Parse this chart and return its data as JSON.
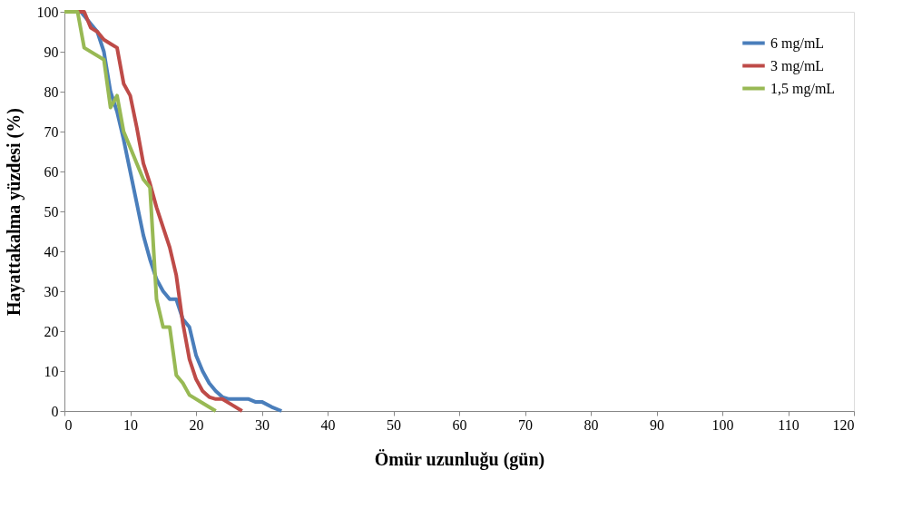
{
  "chart_data": {
    "type": "line",
    "xlabel": "Ömür uzunluğu (gün)",
    "ylabel": "Hayattakalma yüzdesi (%)",
    "xlim": [
      0,
      120
    ],
    "xticks": [
      0,
      10,
      20,
      30,
      40,
      50,
      60,
      70,
      80,
      90,
      100,
      110,
      120
    ],
    "ylim": [
      0,
      100
    ],
    "yticks": [
      0,
      10,
      20,
      30,
      40,
      50,
      60,
      70,
      80,
      90,
      100
    ],
    "grid": false,
    "legend": "top right",
    "marker": "none",
    "line_style": "solid",
    "series": [
      {
        "name": "6 mg/mL",
        "color": "#4a7ebb",
        "x": [
          0,
          2.5,
          4,
          5,
          6,
          7,
          8,
          9,
          10,
          11,
          12,
          13,
          14,
          15,
          16,
          17,
          18,
          19,
          20,
          21,
          22,
          23,
          24,
          25,
          28,
          29,
          30,
          31.5,
          33
        ],
        "values": [
          100,
          100,
          97,
          95,
          90,
          80,
          75,
          68,
          60,
          52,
          44,
          38,
          33,
          30,
          28,
          28,
          23,
          21,
          14,
          10,
          7,
          5,
          3.5,
          3,
          3,
          2.3,
          2.3,
          1,
          0
        ]
      },
      {
        "name": "3 mg/mL",
        "color": "#be4b48",
        "x": [
          0,
          3,
          4,
          5,
          6,
          7,
          8,
          9,
          10,
          11,
          12,
          13,
          14,
          15,
          16,
          17,
          18,
          19,
          20,
          21,
          22,
          23,
          24,
          25.5,
          27
        ],
        "values": [
          100,
          100,
          96,
          95,
          93,
          92,
          91,
          82,
          79,
          71,
          62,
          57,
          51,
          46,
          41,
          34,
          22,
          13,
          8,
          5,
          3.5,
          3,
          3,
          1.5,
          0
        ]
      },
      {
        "name": "1,5 mg/mL",
        "color": "#98b954",
        "x": [
          0,
          2,
          3,
          6,
          7,
          8,
          9,
          10,
          11,
          12,
          13,
          14,
          15,
          16,
          17,
          18,
          19,
          21,
          23
        ],
        "values": [
          100,
          100,
          91,
          88,
          76,
          79,
          70,
          66,
          62,
          58,
          56,
          28,
          21,
          21,
          9,
          7,
          4,
          2,
          0
        ]
      }
    ]
  }
}
